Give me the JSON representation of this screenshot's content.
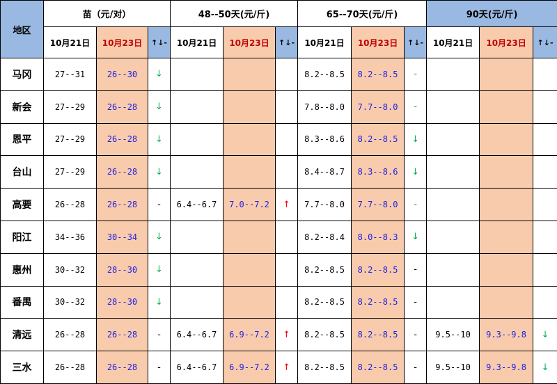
{
  "header": {
    "region_label": "地区",
    "groups": [
      "苗（元/对）",
      "48--50天(元/斤)",
      "65--70天(元/斤)",
      "90天(元/斤)"
    ],
    "date1": "10月21日",
    "date2": "10月23日",
    "trend": "↑↓-"
  },
  "rows": [
    {
      "region": "马冈",
      "g1": {
        "d21": "27--31",
        "d23": "26--30",
        "t": "↓"
      },
      "g2": {
        "d21": "",
        "d23": "",
        "t": ""
      },
      "g3": {
        "d21": "8.2--8.5",
        "d23": "8.2--8.5",
        "t": "-"
      },
      "g4": {
        "d21": "",
        "d23": "",
        "t": ""
      }
    },
    {
      "region": "新会",
      "g1": {
        "d21": "27--29",
        "d23": "26--28",
        "t": "↓"
      },
      "g2": {
        "d21": "",
        "d23": "",
        "t": ""
      },
      "g3": {
        "d21": "7.8--8.0",
        "d23": "7.7--8.0",
        "t": "-"
      },
      "g4": {
        "d21": "",
        "d23": "",
        "t": ""
      }
    },
    {
      "region": "恩平",
      "g1": {
        "d21": "27--29",
        "d23": "26--28",
        "t": "↓"
      },
      "g2": {
        "d21": "",
        "d23": "",
        "t": ""
      },
      "g3": {
        "d21": "8.3--8.6",
        "d23": "8.2--8.5",
        "t": "↓"
      },
      "g4": {
        "d21": "",
        "d23": "",
        "t": ""
      }
    },
    {
      "region": "台山",
      "g1": {
        "d21": "27--29",
        "d23": "26--28",
        "t": "↓"
      },
      "g2": {
        "d21": "",
        "d23": "",
        "t": ""
      },
      "g3": {
        "d21": "8.4--8.7",
        "d23": "8.3--8.6",
        "t": "↓"
      },
      "g4": {
        "d21": "",
        "d23": "",
        "t": ""
      }
    },
    {
      "region": "高要",
      "g1": {
        "d21": "26--28",
        "d23": "26--28",
        "t": "-"
      },
      "g2": {
        "d21": "6.4--6.7",
        "d23": "7.0--7.2",
        "t": "↑"
      },
      "g3": {
        "d21": "7.7--8.0",
        "d23": "7.7--8.0",
        "t": "-"
      },
      "g4": {
        "d21": "",
        "d23": "",
        "t": ""
      }
    },
    {
      "region": "阳江",
      "g1": {
        "d21": "34--36",
        "d23": "30--34",
        "t": "↓"
      },
      "g2": {
        "d21": "",
        "d23": "",
        "t": ""
      },
      "g3": {
        "d21": "8.2--8.4",
        "d23": "8.0--8.3",
        "t": "↓"
      },
      "g4": {
        "d21": "",
        "d23": "",
        "t": ""
      }
    },
    {
      "region": "惠州",
      "g1": {
        "d21": "30--32",
        "d23": "28--30",
        "t": "↓"
      },
      "g2": {
        "d21": "",
        "d23": "",
        "t": ""
      },
      "g3": {
        "d21": "8.2--8.5",
        "d23": "8.2--8.5",
        "t": "-"
      },
      "g4": {
        "d21": "",
        "d23": "",
        "t": ""
      }
    },
    {
      "region": "番禺",
      "g1": {
        "d21": "30--32",
        "d23": "28--30",
        "t": "↓"
      },
      "g2": {
        "d21": "",
        "d23": "",
        "t": ""
      },
      "g3": {
        "d21": "8.2--8.5",
        "d23": "8.2--8.5",
        "t": "-"
      },
      "g4": {
        "d21": "",
        "d23": "",
        "t": ""
      }
    },
    {
      "region": "清远",
      "g1": {
        "d21": "26--28",
        "d23": "26--28",
        "t": "-"
      },
      "g2": {
        "d21": "6.4--6.7",
        "d23": "6.9--7.2",
        "t": "↑"
      },
      "g3": {
        "d21": "8.2--8.5",
        "d23": "8.2--8.5",
        "t": "-"
      },
      "g4": {
        "d21": "9.5--10",
        "d23": "9.3--9.8",
        "t": "↓"
      }
    },
    {
      "region": "三水",
      "g1": {
        "d21": "26--28",
        "d23": "26--28",
        "t": "-"
      },
      "g2": {
        "d21": "6.4--6.7",
        "d23": "6.9--7.2",
        "t": "↑"
      },
      "g3": {
        "d21": "8.2--8.5",
        "d23": "8.2--8.5",
        "t": "-"
      },
      "g4": {
        "d21": "9.5--10",
        "d23": "9.3--9.8",
        "t": "↓"
      }
    }
  ],
  "colors": {
    "header_blue": "#9ab9e2",
    "highlight_peach": "#f8cbad",
    "down_green": "#00b050",
    "up_red": "#ff0000",
    "value_blue": "#1f1fe0",
    "date_red": "#c00000"
  }
}
